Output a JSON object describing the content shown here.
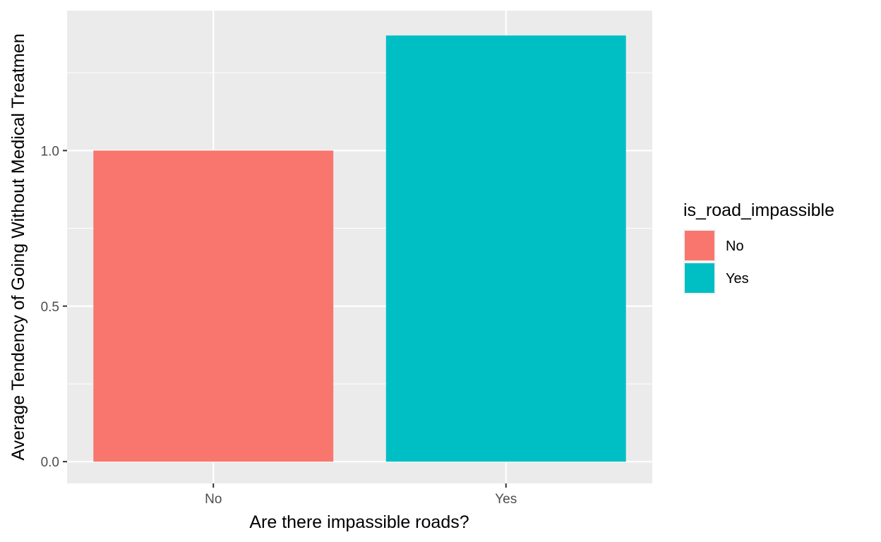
{
  "chart_data": {
    "type": "bar",
    "title": "",
    "xlabel": "Are there impassible roads?",
    "ylabel": "Average Tendency of Going Without Medical Treatmen",
    "categories": [
      "No",
      "Yes"
    ],
    "values": [
      1.0,
      1.37
    ],
    "colors": [
      "#F8766D",
      "#00BFC4"
    ],
    "ylim": [
      -0.07,
      1.45
    ],
    "yticks": [
      0.0,
      0.5,
      1.0
    ],
    "ytick_labels": [
      "0.0",
      "0.5",
      "1.0"
    ],
    "grid": true,
    "panel_background": "#EBEBEB",
    "legend": {
      "title": "is_road_impassible",
      "placement": "right",
      "entries": [
        {
          "label": "No",
          "color": "#F8766D"
        },
        {
          "label": "Yes",
          "color": "#00BFC4"
        }
      ]
    }
  }
}
